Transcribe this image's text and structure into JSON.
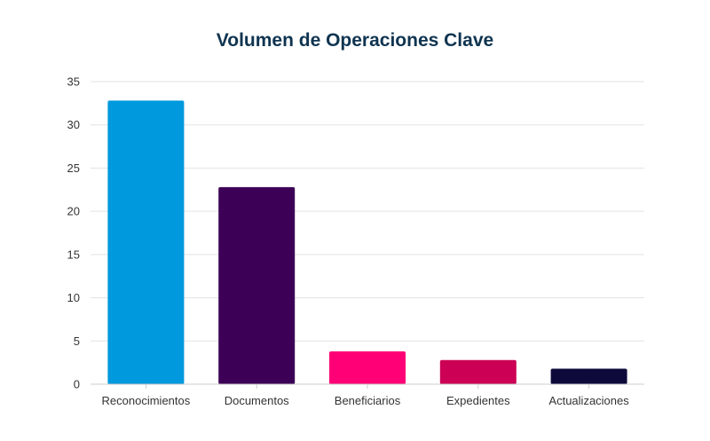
{
  "chart_data": {
    "type": "bar",
    "title": "Volumen de Operaciones Clave",
    "xlabel": "",
    "ylabel": "",
    "categories": [
      "Reconocimientos",
      "Documentos",
      "Beneficiarios",
      "Expedientes",
      "Actualizaciones"
    ],
    "values": [
      32.8,
      22.8,
      3.8,
      2.8,
      1.8
    ],
    "colors": [
      "#0099dd",
      "#3d0057",
      "#ff0077",
      "#cc0055",
      "#0d0a3b"
    ],
    "ylim": [
      0,
      35
    ],
    "yticks": [
      0,
      5,
      10,
      15,
      20,
      25,
      30,
      35
    ],
    "grid": true,
    "legend": "none"
  },
  "colors": {
    "title": "#0f3450",
    "grid": "#e3e3e3",
    "axis": "#cccccc",
    "text": "#333333"
  }
}
